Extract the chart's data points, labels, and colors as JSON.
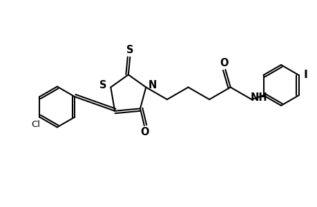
{
  "background_color": "#ffffff",
  "line_color": "#000000",
  "line_width": 1.5,
  "font_size": 9.5,
  "xlim": [
    0,
    9.2
  ],
  "ylim": [
    0,
    6.0
  ]
}
